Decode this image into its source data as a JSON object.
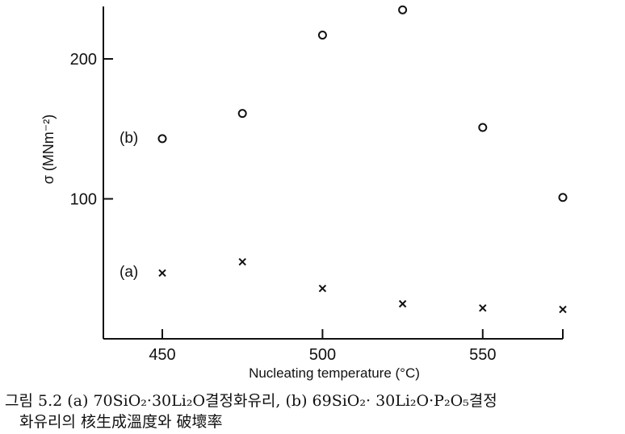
{
  "chart_data": {
    "type": "scatter",
    "xlabel": "Nucleating temperature (°C)",
    "ylabel": "σ (MNm⁻²)",
    "xlim": [
      430,
      578
    ],
    "ylim": [
      0,
      242
    ],
    "x_ticks": [
      450,
      500,
      550
    ],
    "y_ticks": [
      100,
      200
    ],
    "grid": false,
    "series": [
      {
        "name": "(b)",
        "marker": "circle",
        "x": [
          450,
          475,
          500,
          525,
          550,
          575
        ],
        "y": [
          143,
          161,
          217,
          235,
          151,
          101
        ]
      },
      {
        "name": "(a)",
        "marker": "cross",
        "x": [
          450,
          475,
          500,
          525,
          550,
          575
        ],
        "y": [
          47,
          55,
          36,
          25,
          22,
          21
        ]
      }
    ]
  },
  "caption": {
    "line1": "그림 5.2  (a) 70SiO₂·30Li₂O결정화유리, (b) 69SiO₂· 30Li₂O·P₂O₅결정",
    "line2": "화유리의 核生成溫度와 破壞率"
  },
  "colors": {
    "ink": "#111111",
    "background": "#ffffff"
  }
}
